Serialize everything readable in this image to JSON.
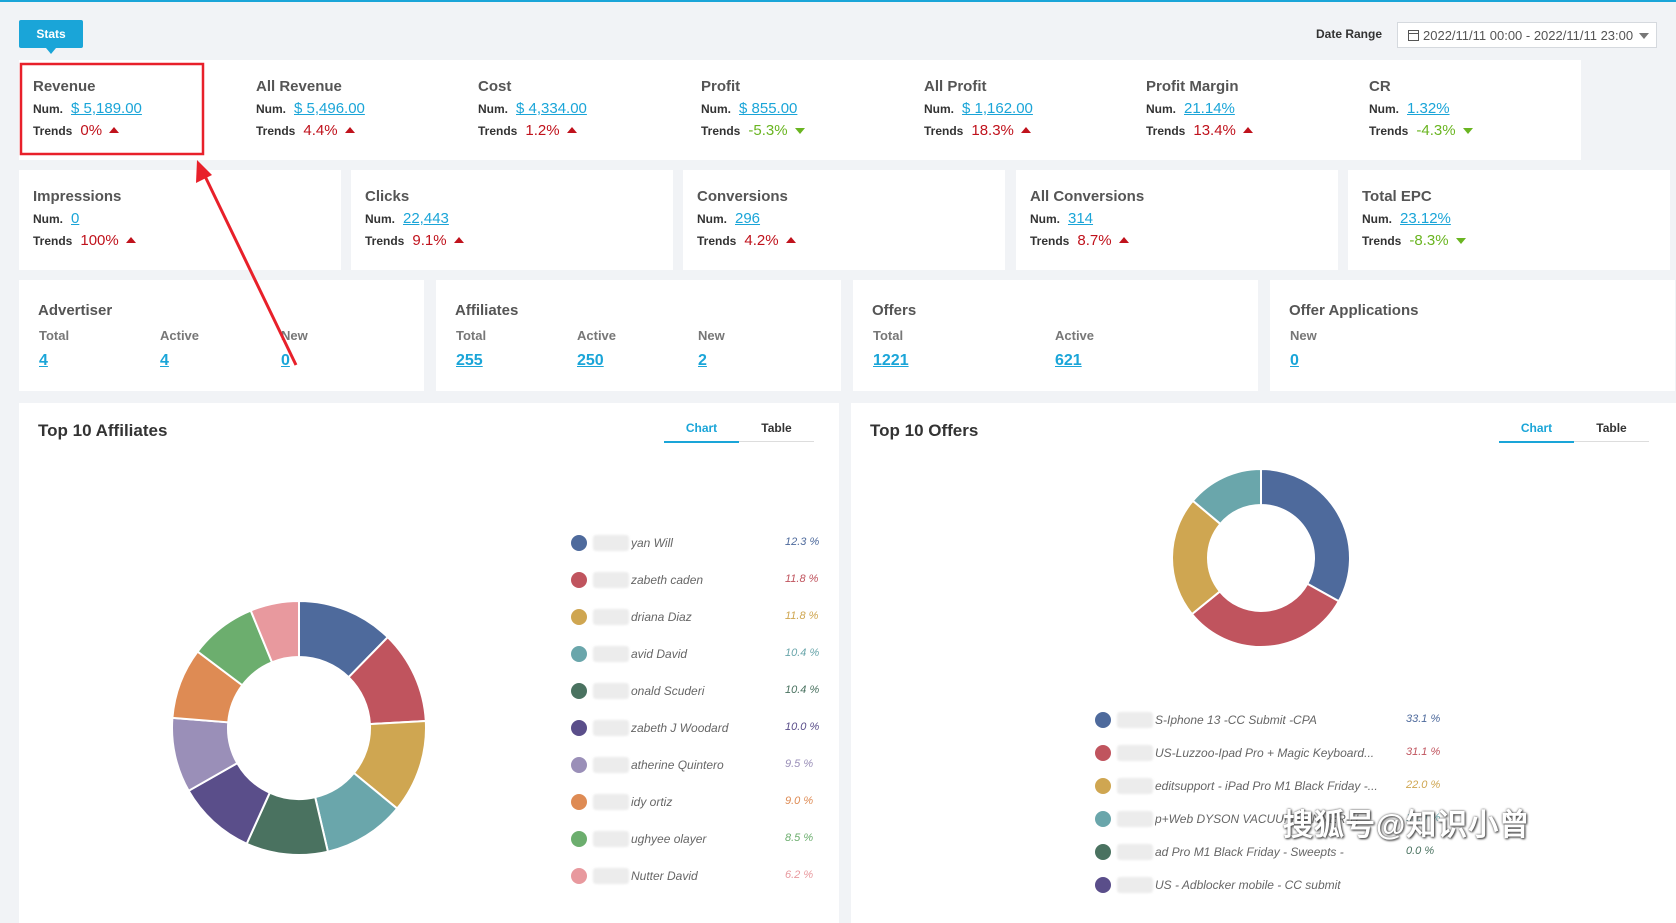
{
  "header": {
    "stats_tab": "Stats",
    "date_range_label": "Date Range",
    "date_range_value": "2022/11/11 00:00 - 2022/11/11 23:00"
  },
  "metrics_row1": [
    {
      "title": "Revenue",
      "num_label": "Num.",
      "num": "$ 5,189.00",
      "trend_label": "Trends",
      "trend": "0%",
      "direction": "up"
    },
    {
      "title": "All Revenue",
      "num_label": "Num.",
      "num": "$ 5,496.00",
      "trend_label": "Trends",
      "trend": "4.4%",
      "direction": "up"
    },
    {
      "title": "Cost",
      "num_label": "Num.",
      "num": "$ 4,334.00",
      "trend_label": "Trends",
      "trend": "1.2%",
      "direction": "up"
    },
    {
      "title": "Profit",
      "num_label": "Num.",
      "num": "$ 855.00",
      "trend_label": "Trends",
      "trend": "-5.3%",
      "direction": "down"
    },
    {
      "title": "All Profit",
      "num_label": "Num.",
      "num": "$ 1,162.00",
      "trend_label": "Trends",
      "trend": "18.3%",
      "direction": "up"
    },
    {
      "title": "Profit Margin",
      "num_label": "Num.",
      "num": "21.14%",
      "trend_label": "Trends",
      "trend": "13.4%",
      "direction": "up"
    },
    {
      "title": "CR",
      "num_label": "Num.",
      "num": "1.32%",
      "trend_label": "Trends",
      "trend": "-4.3%",
      "direction": "down"
    }
  ],
  "metrics_row2": [
    {
      "title": "Impressions",
      "num_label": "Num.",
      "num": "0",
      "trend_label": "Trends",
      "trend": "100%",
      "direction": "up"
    },
    {
      "title": "Clicks",
      "num_label": "Num.",
      "num": "22,443",
      "trend_label": "Trends",
      "trend": "9.1%",
      "direction": "up"
    },
    {
      "title": "Conversions",
      "num_label": "Num.",
      "num": "296",
      "trend_label": "Trends",
      "trend": "4.2%",
      "direction": "up"
    },
    {
      "title": "All Conversions",
      "num_label": "Num.",
      "num": "314",
      "trend_label": "Trends",
      "trend": "8.7%",
      "direction": "up"
    },
    {
      "title": "Total EPC",
      "num_label": "Num.",
      "num": "23.12%",
      "trend_label": "Trends",
      "trend": "-8.3%",
      "direction": "down"
    }
  ],
  "counts": [
    {
      "title": "Advertiser",
      "cols": [
        {
          "h": "Total",
          "v": "4"
        },
        {
          "h": "Active",
          "v": "4"
        },
        {
          "h": "New",
          "v": "0"
        }
      ]
    },
    {
      "title": "Affiliates",
      "cols": [
        {
          "h": "Total",
          "v": "255"
        },
        {
          "h": "Active",
          "v": "250"
        },
        {
          "h": "New",
          "v": "2"
        }
      ]
    },
    {
      "title": "Offers",
      "cols": [
        {
          "h": "Total",
          "v": "1221"
        },
        {
          "h": "Active",
          "v": "621"
        }
      ]
    },
    {
      "title": "Offer Applications",
      "cols": [
        {
          "h": "New",
          "v": "0"
        }
      ]
    }
  ],
  "affiliates_panel": {
    "title": "Top 10 Affiliates",
    "tab_chart": "Chart",
    "tab_table": "Table"
  },
  "offers_panel": {
    "title": "Top 10 Offers",
    "tab_chart": "Chart",
    "tab_table": "Table"
  },
  "chart_data": [
    {
      "type": "pie",
      "title": "Top 10 Affiliates",
      "categories": [
        "yan Will",
        "zabeth caden",
        "driana Diaz",
        "avid David",
        "onald Scuderi",
        "zabeth J Woodard",
        "atherine Quintero",
        "idy ortiz",
        "ughyee olayer",
        "Nutter David"
      ],
      "labels": [
        "12.3 %",
        "11.8 %",
        "11.8 %",
        "10.4 %",
        "10.4 %",
        "10.0 %",
        "9.5 %",
        "9.0 %",
        "8.5 %",
        "6.2 %"
      ],
      "values": [
        12.3,
        11.8,
        11.8,
        10.4,
        10.4,
        10.0,
        9.5,
        9.0,
        8.5,
        6.2
      ],
      "colors": [
        "#4e6a9c",
        "#c0545e",
        "#cfa651",
        "#6aa6ab",
        "#4a7260",
        "#5a4e8a",
        "#9a8fb8",
        "#de8b54",
        "#6cae6e",
        "#e8999e"
      ]
    },
    {
      "type": "pie",
      "title": "Top 10 Offers",
      "categories": [
        "S-Iphone 13 -CC Submit -CPA",
        "US-Luzzoo-Ipad Pro + Magic Keyboard...",
        "editsupport - iPad Pro M1 Black Friday -...",
        "p+Web DYSON VACUUM WINNER-U...",
        "ad Pro M1 Black Friday - Sweepts -",
        "US - Adblocker mobile - CC submit"
      ],
      "labels": [
        "33.1 %",
        "31.1 %",
        "22.0 %",
        "13.9 %",
        "0.0 %",
        ""
      ],
      "values": [
        33.1,
        31.1,
        22.0,
        13.9,
        0.0,
        0.0
      ],
      "colors": [
        "#4e6a9c",
        "#c0545e",
        "#cfa651",
        "#6aa6ab",
        "#4a7260",
        "#5a4e8a"
      ]
    }
  ],
  "watermark": "搜狐号@知识小曾"
}
